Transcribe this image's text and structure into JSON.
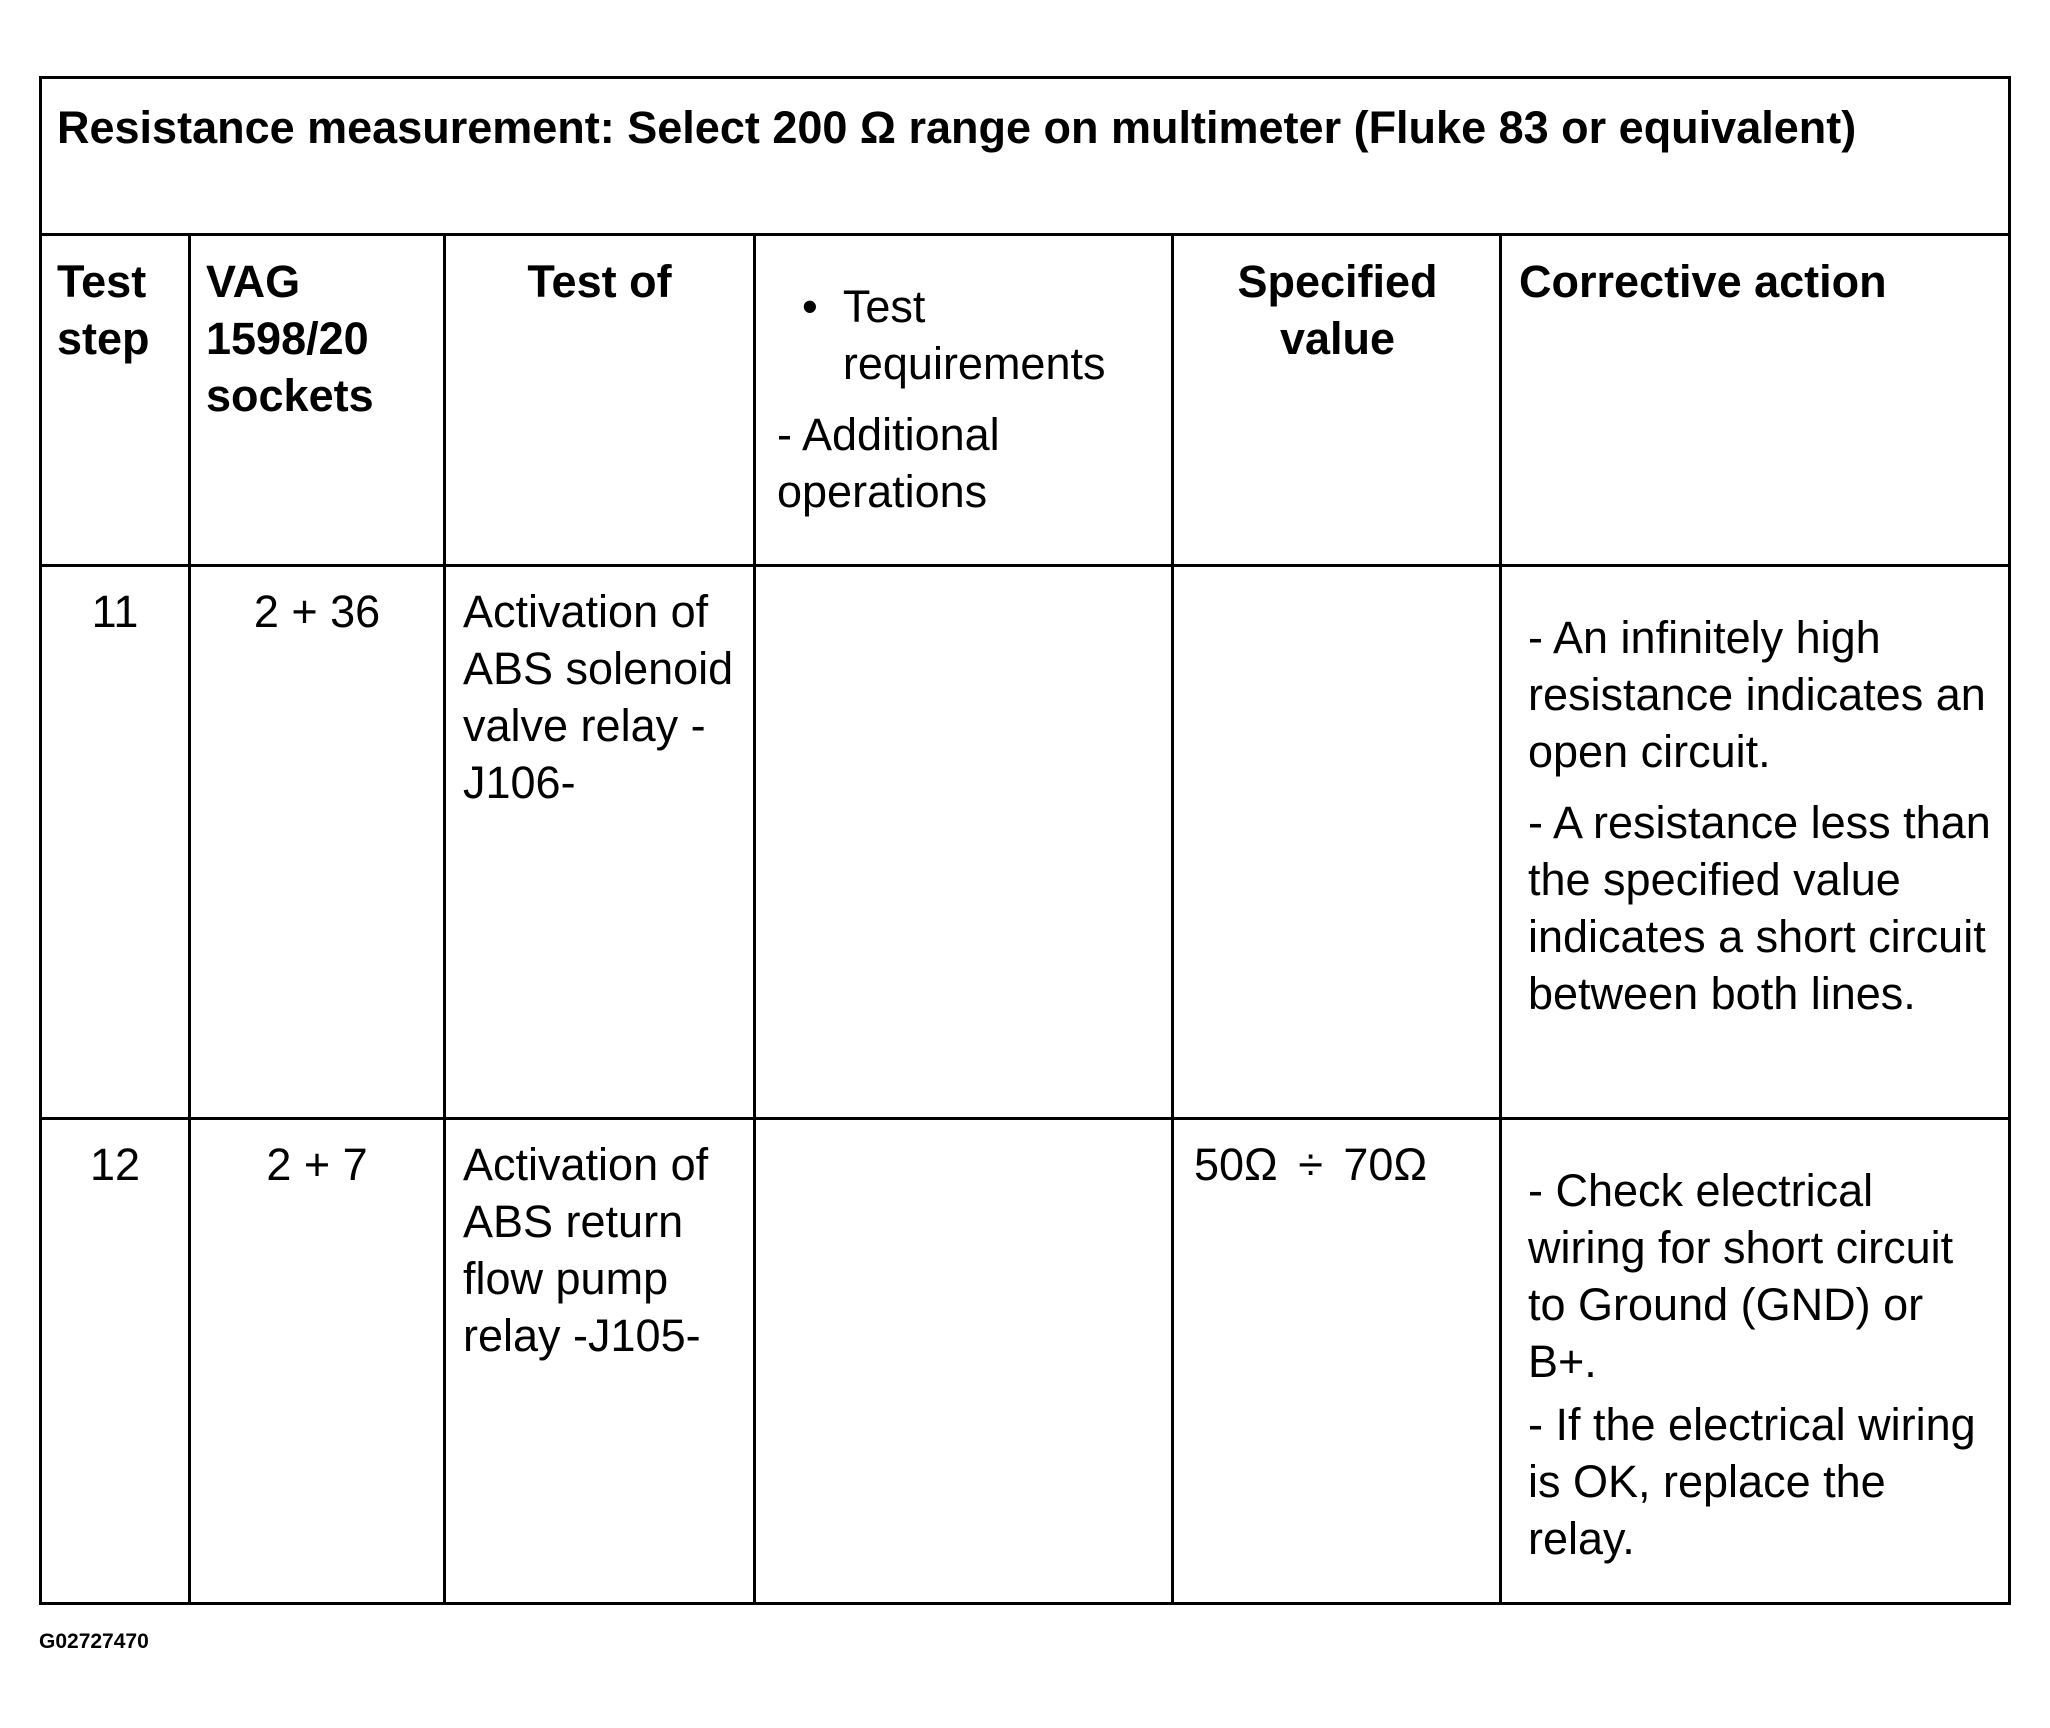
{
  "title": "Resistance measurement: Select 200 Ω range on multimeter (Fluke 83 or equivalent)",
  "headers": {
    "test_step": "Test step",
    "sockets": "VAG 1598/20 sockets",
    "test_of": "Test of",
    "requirements_bullet": "Test requirements",
    "additional_ops": "- Additional operations",
    "specified_value": "Specified value",
    "corrective_action": "Corrective action"
  },
  "rows": [
    {
      "step": "11",
      "sockets": "2 + 36",
      "test_of": "Activation of ABS solenoid valve relay -J106-",
      "requirements": "",
      "specified_value": "",
      "corrective": [
        "- An infinitely high resistance indicates an open circuit.",
        "- A resistance less than the specified value indicates a short circuit between both lines."
      ]
    },
    {
      "step": "12",
      "sockets": "2 + 7",
      "test_of": "Activation of ABS return flow pump relay -J105-",
      "requirements": "",
      "specified_value": "50Ω ÷ 70Ω",
      "corrective": [
        "- Check electrical wiring for short circuit to Ground (GND) or B+.",
        "- If the electrical wiring is OK, replace the relay."
      ]
    }
  ],
  "caption": "G02727470"
}
